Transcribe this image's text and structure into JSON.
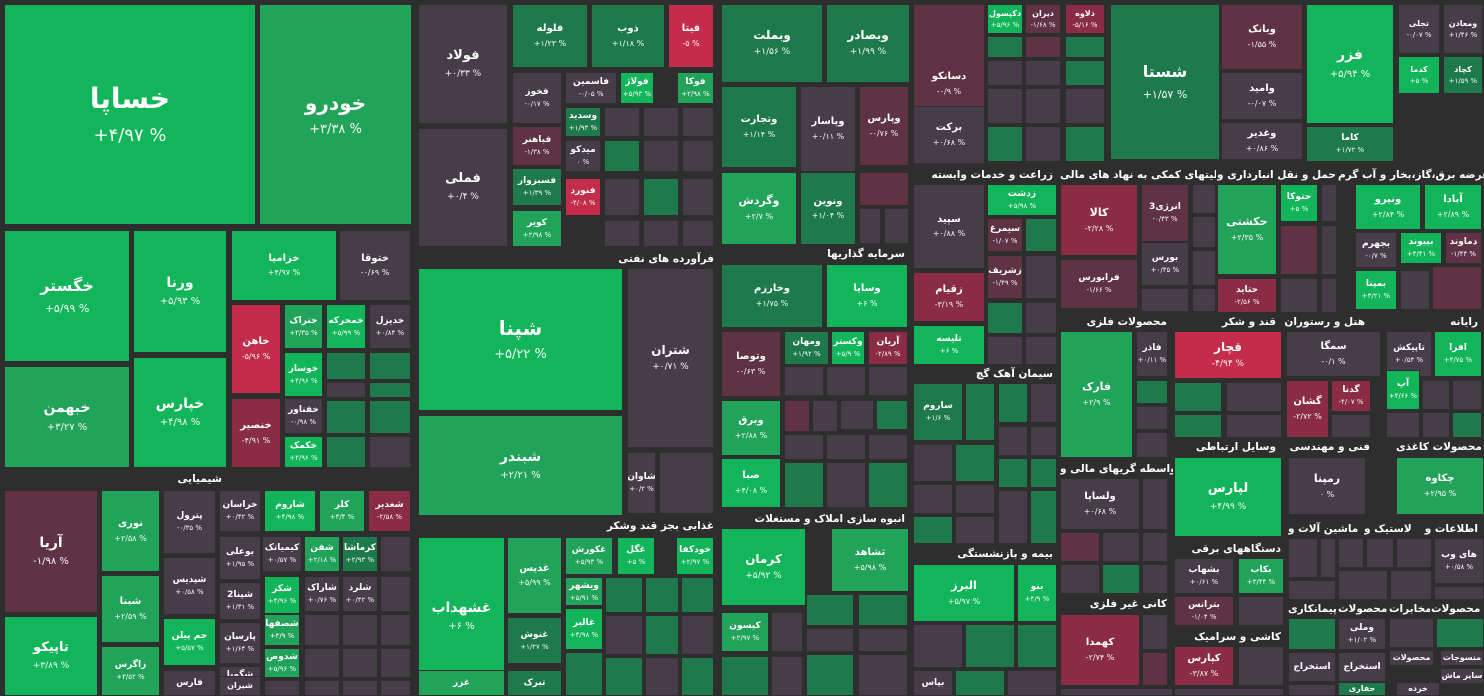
{
  "colors": {
    "bg": "#2e2e2e",
    "up3": "#12b559",
    "up2": "#22a35a",
    "up1": "#1e7a4c",
    "flat": "#463d48",
    "dn1": "#5f3244",
    "dn2": "#8a2c45",
    "dn3": "#c42c4b"
  },
  "sectors": [
    {
      "label": "شیمیایی"
    },
    {
      "label": "فرآورده های نفتی"
    },
    {
      "label": "غذایی بجز قند وشکر"
    },
    {
      "label": "سرمایه گذاریها"
    },
    {
      "label": "انبوه سازی املاک و مستغلات"
    },
    {
      "label": "زراعت و خدمات وابسته"
    },
    {
      "label": "سیمان آهک گچ"
    },
    {
      "label": "بیمه و بازنشستگی"
    },
    {
      "label": "کانی غیر فلزی"
    },
    {
      "label": "کاشی و سرامیک"
    },
    {
      "label": "فعالیتهای کمکی به نهاد های مالی"
    },
    {
      "label": "حمل و نقل انبارداری و"
    },
    {
      "label": "عرضه برق،گاز،بخار و آب گرم"
    },
    {
      "label": "محصولات فلزی"
    },
    {
      "label": "قند و شکر"
    },
    {
      "label": "هتل و رستوران"
    },
    {
      "label": "رایانه"
    },
    {
      "label": "وسایل ارتباطی"
    },
    {
      "label": "فنی و مهندسی"
    },
    {
      "label": "محصولات کاغذی"
    },
    {
      "label": "واسطه گریهای مالی و"
    },
    {
      "label": "دستگاههای برقی"
    },
    {
      "label": "لاستیک و"
    },
    {
      "label": "ماشین آلات و"
    },
    {
      "label": "اطلاعات و"
    },
    {
      "label": "مخابرات"
    },
    {
      "label": "محصولات"
    },
    {
      "label": "پیمانکاری"
    },
    {
      "label": "محصولات"
    }
  ],
  "tiles": [
    {
      "n": "خساپا",
      "p": "+۴/۹۷ %",
      "c": "up3"
    },
    {
      "n": "خودرو",
      "p": "+۳/۳۸ %",
      "c": "up2"
    },
    {
      "n": "خگستر",
      "p": "+۵/۹۹ %",
      "c": "up3"
    },
    {
      "n": "خبهمن",
      "p": "+۳/۲۷ %",
      "c": "up2"
    },
    {
      "n": "ورنا",
      "p": "+۵/۹۳ %",
      "c": "up3"
    },
    {
      "n": "خپارس",
      "p": "+۴/۹۸ %",
      "c": "up3"
    },
    {
      "n": "خزامیا",
      "p": "+۴/۹۷ %",
      "c": "up3"
    },
    {
      "n": "ختوقا",
      "p": "-۰/۶۹ %",
      "c": "flat"
    },
    {
      "n": "خاهن",
      "p": "-۵/۹۶ %",
      "c": "dn3"
    },
    {
      "n": "ختراک",
      "p": "+۳/۳۵ %",
      "c": "up2"
    },
    {
      "n": "خمحرکه",
      "p": "+۵/۹۹ %",
      "c": "up3"
    },
    {
      "n": "خدیزل",
      "p": "+۰/۸۴ %",
      "c": "flat"
    },
    {
      "n": "خوساز",
      "p": "+۴/۹۶ %",
      "c": "up3"
    },
    {
      "n": "خفناور",
      "p": "-۰/۹۸ %",
      "c": "flat"
    },
    {
      "n": "خنصیر",
      "p": "-۴/۹۱ %",
      "c": "dn2"
    },
    {
      "n": "خکمک",
      "p": "+۴/۹۶ %",
      "c": "up3"
    },
    {
      "n": "فولاد",
      "p": "+۰/۳۳ %",
      "c": "flat"
    },
    {
      "n": "فملی",
      "p": "+۰/۴ %",
      "c": "flat"
    },
    {
      "n": "فلوله",
      "p": "+۱/۲۳ %",
      "c": "up1"
    },
    {
      "n": "ذوب",
      "p": "+۱/۱۸ %",
      "c": "up1"
    },
    {
      "n": "فیتا",
      "p": "-۵ %",
      "c": "dn3"
    },
    {
      "n": "فخوز",
      "p": "-۰/۱۷ %",
      "c": "flat"
    },
    {
      "n": "فاسمین",
      "p": "-۰/۰۵ %",
      "c": "flat"
    },
    {
      "n": "فولاژ",
      "p": "+۵/۹۳ %",
      "c": "up3"
    },
    {
      "n": "فوکا",
      "p": "+۲/۹۸ %",
      "c": "up2"
    },
    {
      "n": "فباهنر",
      "p": "-۱/۳۸ %",
      "c": "dn1"
    },
    {
      "n": "وسدید",
      "p": "+۱/۹۳ %",
      "c": "up1"
    },
    {
      "n": "میدکو",
      "p": "۰ %",
      "c": "flat"
    },
    {
      "n": "فسبزوار",
      "p": "+۱/۳۹ %",
      "c": "up1"
    },
    {
      "n": "فنورد",
      "p": "-۴/۰۸ %",
      "c": "dn3"
    },
    {
      "n": "کویر",
      "p": "+۲/۹۸ %",
      "c": "up2"
    },
    {
      "n": "شپنا",
      "p": "+۵/۲۲ %",
      "c": "up3"
    },
    {
      "n": "شتران",
      "p": "+۰/۷۱ %",
      "c": "flat"
    },
    {
      "n": "شبندر",
      "p": "+۲/۲۱ %",
      "c": "up2"
    },
    {
      "n": "شاوان",
      "p": "+۰/۲ %",
      "c": "flat"
    },
    {
      "n": "وبملت",
      "p": "+۱/۵۶ %",
      "c": "up1"
    },
    {
      "n": "وبصادر",
      "p": "+۱/۹۹ %",
      "c": "up1"
    },
    {
      "n": "وتجارت",
      "p": "+۱/۱۴ %",
      "c": "up1"
    },
    {
      "n": "وپاسار",
      "p": "+۰/۱۱ %",
      "c": "flat"
    },
    {
      "n": "وپارس",
      "p": "-۰/۷۶ %",
      "c": "dn1"
    },
    {
      "n": "وگردش",
      "p": "+۲/۷ %",
      "c": "up2"
    },
    {
      "n": "ونوین",
      "p": "+۱/۰۴ %",
      "c": "up1"
    },
    {
      "n": "دسانکو",
      "p": "-۰/۹ %",
      "c": "dn1"
    },
    {
      "n": "برکت",
      "p": "+۰/۶۸ %",
      "c": "flat"
    },
    {
      "n": "دکپسول",
      "p": "+۵/۹۶ %",
      "c": "up3"
    },
    {
      "n": "دیران",
      "p": "-۱/۶۸ %",
      "c": "dn1"
    },
    {
      "n": "دلاوه",
      "p": "-۵/۱۶ %",
      "c": "dn2"
    },
    {
      "n": "شستا",
      "p": "+۱/۵۷ %",
      "c": "up1"
    },
    {
      "n": "وبانک",
      "p": "-۱/۵۵ %",
      "c": "dn1"
    },
    {
      "n": "وامید",
      "p": "-۰/۰۷ %",
      "c": "flat"
    },
    {
      "n": "وغدیر",
      "p": "+۰/۸۶ %",
      "c": "flat"
    },
    {
      "n": "فزر",
      "p": "+۵/۹۴ %",
      "c": "up3"
    },
    {
      "n": "کاما",
      "p": "+۱/۷۲ %",
      "c": "up1"
    },
    {
      "n": "تجلی",
      "p": "-۰/۰۷ %",
      "c": "flat"
    },
    {
      "n": "ومعادن",
      "p": "+۱/۴۶ %",
      "c": "flat"
    },
    {
      "n": "کدما",
      "p": "+۵ %",
      "c": "up3"
    },
    {
      "n": "کچاد",
      "p": "+۱/۵۹ %",
      "c": "up1"
    },
    {
      "n": "غشهداب",
      "p": "+۶ %",
      "c": "up3"
    },
    {
      "n": "غدیس",
      "p": "+۵/۹۹ %",
      "c": "up2"
    },
    {
      "n": "غکورش",
      "p": "+۵/۹۳ %",
      "c": "up2"
    },
    {
      "n": "غگل",
      "p": "+۵ %",
      "c": "up3"
    },
    {
      "n": "خودکفا",
      "p": "+۲/۹۷ %",
      "c": "up3"
    },
    {
      "n": "غنوش",
      "p": "+۱/۲۷ %",
      "c": "up1"
    },
    {
      "n": "ویشهر",
      "p": "+۵/۹۱ %",
      "c": "up2"
    },
    {
      "n": "غالبر",
      "p": "+۴/۹۸ %",
      "c": "up3"
    },
    {
      "n": "غزر",
      "p": "",
      "c": "up2"
    },
    {
      "n": "تبرک",
      "p": "",
      "c": "up1"
    },
    {
      "n": "وخارزم",
      "p": "+۱/۷۵ %",
      "c": "up1"
    },
    {
      "n": "وسایا",
      "p": "+۶ %",
      "c": "up3"
    },
    {
      "n": "وتوصا",
      "p": "-۰/۶۳ %",
      "c": "dn1"
    },
    {
      "n": "ومهان",
      "p": "+۱/۹۲ %",
      "c": "up1"
    },
    {
      "n": "وکستر",
      "p": "+۵/۹ %",
      "c": "up3"
    },
    {
      "n": "آریان",
      "p": "-۲/۸۹ %",
      "c": "dn2"
    },
    {
      "n": "وبرق",
      "p": "+۲/۸۸ %",
      "c": "up2"
    },
    {
      "n": "صبا",
      "p": "+۴/۰۸ %",
      "c": "up3"
    },
    {
      "n": "کرمان",
      "p": "+۵/۹۲ %",
      "c": "up3"
    },
    {
      "n": "ثشاهد",
      "p": "+۵/۹۸ %",
      "c": "up2"
    },
    {
      "n": "کیسون",
      "p": "+۲/۹۷ %",
      "c": "up2"
    },
    {
      "n": "زدشت",
      "p": "+۵/۹۸ %",
      "c": "up3"
    },
    {
      "n": "سیمرغ",
      "p": "-۱/۰۷ %",
      "c": "dn1"
    },
    {
      "n": "سپید",
      "p": "+۰/۸۸ %",
      "c": "flat"
    },
    {
      "n": "زشریف",
      "p": "-۱/۴۹ %",
      "c": "dn1"
    },
    {
      "n": "زقیام",
      "p": "-۳/۱۹ %",
      "c": "dn2"
    },
    {
      "n": "تلیسه",
      "p": "+۶ %",
      "c": "up3"
    },
    {
      "n": "ساروم",
      "p": "+۱/۶ %",
      "c": "up1"
    },
    {
      "n": "البرز",
      "p": "+۵/۹۷ %",
      "c": "up3"
    },
    {
      "n": "بنو",
      "p": "+۴/۹ %",
      "c": "up3"
    },
    {
      "n": "بپاس",
      "p": "",
      "c": "flat"
    },
    {
      "n": "کالا",
      "p": "-۲/۲۸ %",
      "c": "dn2"
    },
    {
      "n": "انرژی3",
      "p": "-۰/۴۳ %",
      "c": "dn1"
    },
    {
      "n": "بورس",
      "p": "+۰/۳۵ %",
      "c": "flat"
    },
    {
      "n": "فرابورس",
      "p": "-۱/۶۶ %",
      "c": "dn1"
    },
    {
      "n": "حکشتی",
      "p": "+۲/۳۵ %",
      "c": "up2"
    },
    {
      "n": "حتوکا",
      "p": "+۵ %",
      "c": "up3"
    },
    {
      "n": "حتاید",
      "p": "-۲/۵۶ %",
      "c": "dn2"
    },
    {
      "n": "ونیرو",
      "p": "+۲/۸۴ %",
      "c": "up3"
    },
    {
      "n": "آبادا",
      "p": "+۲/۸۹ %",
      "c": "up3"
    },
    {
      "n": "بجهرم",
      "p": "-۰/۷ %",
      "c": "flat"
    },
    {
      "n": "بپیوند",
      "p": "+۴/۴۱ %",
      "c": "up3"
    },
    {
      "n": "دماوند",
      "p": "-۱/۴۴ %",
      "c": "dn1"
    },
    {
      "n": "بمپنا",
      "p": "+۴/۲۱ %",
      "c": "up3"
    },
    {
      "n": "فارک",
      "p": "+۲/۹ %",
      "c": "up2"
    },
    {
      "n": "فاذر",
      "p": "+۰/۱۱ %",
      "c": "flat"
    },
    {
      "n": "قچار",
      "p": "-۴/۹۴ %",
      "c": "dn3"
    },
    {
      "n": "سمگا",
      "p": "-۰/۱ %",
      "c": "flat"
    },
    {
      "n": "گشان",
      "p": "-۲/۷۲ %",
      "c": "dn2"
    },
    {
      "n": "گدنا",
      "p": "-۴/۰۷ %",
      "c": "dn2"
    },
    {
      "n": "تاپیکش",
      "p": "+۰/۵۴ %",
      "c": "flat"
    },
    {
      "n": "افرا",
      "p": "+۴/۷۵ %",
      "c": "up3"
    },
    {
      "n": "آپ",
      "p": "+۴/۶۶ %",
      "c": "up3"
    },
    {
      "n": "لپارس",
      "p": "+۴/۹۹ %",
      "c": "up3"
    },
    {
      "n": "رمپنا",
      "p": "۰ %",
      "c": "flat"
    },
    {
      "n": "چکاوه",
      "p": "+۲/۹۵ %",
      "c": "up2"
    },
    {
      "n": "ولساپا",
      "p": "+۰/۶۸ %",
      "c": "flat"
    },
    {
      "n": "بشهاب",
      "p": "+۰/۶۱ %",
      "c": "flat"
    },
    {
      "n": "بکاب",
      "p": "+۳/۴۴ %",
      "c": "up2"
    },
    {
      "n": "بترانس",
      "p": "-۱/۰۴ %",
      "c": "dn1"
    },
    {
      "n": "کهمدا",
      "p": "-۲/۷۴ %",
      "c": "dn2"
    },
    {
      "n": "کپارس",
      "p": "-۳/۸۷ %",
      "c": "dn2"
    },
    {
      "n": "های وب",
      "p": "+۰/۵۸ %",
      "c": "flat"
    },
    {
      "n": "وملی",
      "p": "+۱/۰۲ %",
      "c": "flat"
    },
    {
      "n": "استخراج",
      "p": "",
      "c": "flat"
    },
    {
      "n": "استخراج",
      "p": "",
      "c": "flat"
    },
    {
      "n": "حفاری",
      "p": "",
      "c": "up1"
    },
    {
      "n": "منسوجات",
      "p": "",
      "c": "flat"
    },
    {
      "n": "ساير ماش",
      "p": "",
      "c": "flat"
    },
    {
      "n": "خرده",
      "p": "",
      "c": "flat"
    },
    {
      "n": "محصولات",
      "p": "",
      "c": "flat"
    },
    {
      "n": "آریا",
      "p": "-۱/۹۸ %",
      "c": "dn1"
    },
    {
      "n": "تاپیکو",
      "p": "+۳/۸۹ %",
      "c": "up3"
    },
    {
      "n": "نوری",
      "p": "+۲/۵۸ %",
      "c": "up2"
    },
    {
      "n": "شبنا",
      "p": "+۲/۵۹ %",
      "c": "up2"
    },
    {
      "n": "زاگرس",
      "p": "+۳/۵۲ %",
      "c": "up2"
    },
    {
      "n": "پترول",
      "p": "-۰/۳۵ %",
      "c": "flat"
    },
    {
      "n": "شپدیس",
      "p": "+۰/۵۸ %",
      "c": "flat"
    },
    {
      "n": "جم پیلن",
      "p": "+۵/۵۷ %",
      "c": "up3"
    },
    {
      "n": "فارس",
      "p": "",
      "c": "flat"
    },
    {
      "n": "خراسان",
      "p": "+۰/۴۲ %",
      "c": "flat"
    },
    {
      "n": "شاروم",
      "p": "+۴/۹۸ %",
      "c": "up3"
    },
    {
      "n": "کلر",
      "p": "+۳/۴ %",
      "c": "up2"
    },
    {
      "n": "شغدیر",
      "p": "-۲/۵۸ %",
      "c": "dn2"
    },
    {
      "n": "بوعلی",
      "p": "+۱/۹۵ %",
      "c": "flat"
    },
    {
      "n": "کیمیاتک",
      "p": "+۰/۵۷ %",
      "c": "flat"
    },
    {
      "n": "شفن",
      "p": "+۲/۱۸ %",
      "c": "up2"
    },
    {
      "n": "کرماشا",
      "p": "+۲/۹۳ %",
      "c": "up1"
    },
    {
      "n": "شپنا2",
      "p": "+۱/۳۱ %",
      "c": "flat"
    },
    {
      "n": "پارسان",
      "p": "+۱/۶۴ %",
      "c": "flat"
    },
    {
      "n": "شکر",
      "p": "+۴/۹۶ %",
      "c": "up3"
    },
    {
      "n": "شاراک",
      "p": "+۰/۷۶ %",
      "c": "flat"
    },
    {
      "n": "شلرد",
      "p": "+۰/۴۲ %",
      "c": "flat"
    },
    {
      "n": "شگویا",
      "p": "+۱/۵۱ %",
      "c": "flat"
    },
    {
      "n": "شصفها",
      "p": "+۴/۹ %",
      "c": "up2"
    },
    {
      "n": "شدوص",
      "p": "+۵/۹۶ %",
      "c": "up2"
    },
    {
      "n": "شیران",
      "p": "",
      "c": "flat"
    }
  ]
}
